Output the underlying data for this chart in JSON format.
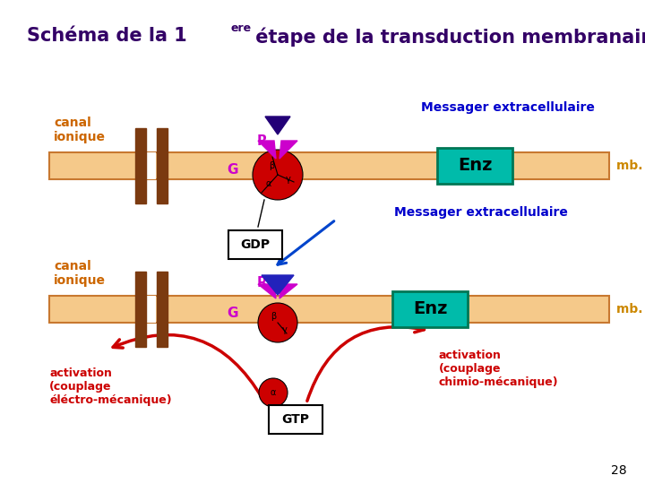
{
  "bg_color": "#ffffff",
  "title_color": "#330066",
  "membrane_color": "#f5c98a",
  "membrane_edge_color": "#c87830",
  "canal_color": "#7b3a10",
  "receptor_color": "#cc00cc",
  "g_protein_color": "#cc0000",
  "enz_box_color": "#00bbaa",
  "enz_edge_color": "#007755",
  "canal_label_color": "#cc6600",
  "mb_label_color": "#cc8800",
  "messager_color": "#0000cc",
  "activation_color": "#cc0000",
  "dark_blue_arrow": "#220077",
  "medium_blue_arrow": "#0044cc",
  "page_num": "28",
  "title_main": "Schéma de la 1",
  "title_sup": "ere",
  "title_rest": " étape de la transduction membranaire"
}
